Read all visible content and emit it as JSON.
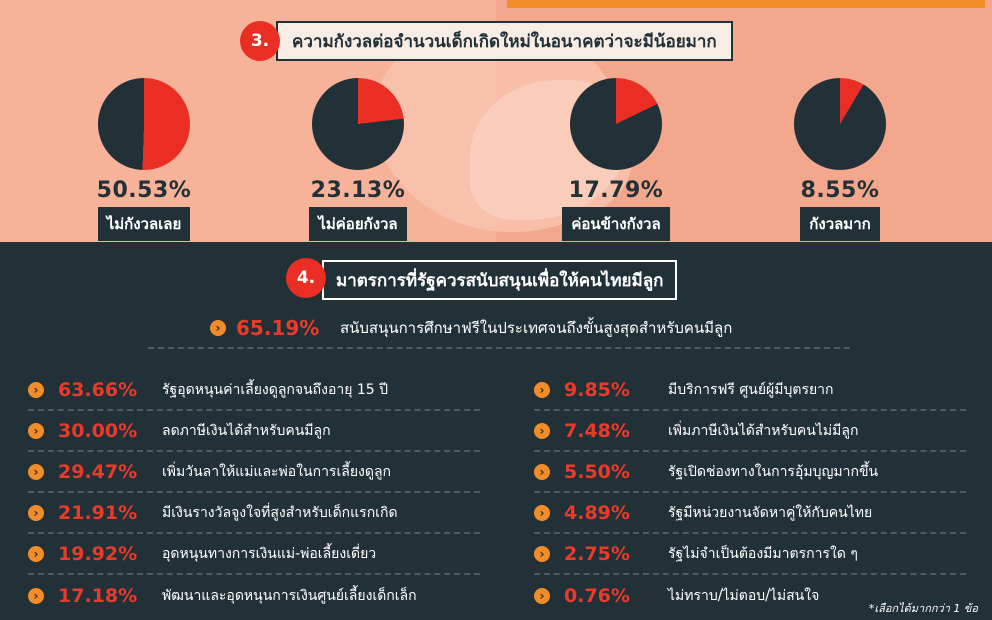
{
  "section3": {
    "number": "3.",
    "title": "ความกังวลต่อจำนวนเด็กเกิดใหม่ในอนาคตว่าจะมีน้อยมาก",
    "pies": [
      {
        "pct": "50.53%",
        "label": "ไม่กังวลเลย",
        "value": 50.53
      },
      {
        "pct": "23.13%",
        "label": "ไม่ค่อยกังวล",
        "value": 23.13
      },
      {
        "pct": "17.79%",
        "label": "ค่อนข้างกังวล",
        "value": 17.79
      },
      {
        "pct": "8.55%",
        "label": "กังวลมาก",
        "value": 8.55
      }
    ]
  },
  "section4": {
    "number": "4.",
    "title": "มาตรการที่รัฐควรสนับสนุนเพื่อให้คนไทยมีลูก",
    "featured": {
      "pct": "65.19%",
      "text": "สนับสนุนการศึกษาฟรีในประเทศจนถึงขั้นสูงสุดสำหรับคนมีลูก"
    },
    "left": [
      {
        "pct": "63.66%",
        "text": "รัฐอุดหนุนค่าเลี้ยงดูลูกจนถึงอายุ 15 ปี"
      },
      {
        "pct": "30.00%",
        "text": "ลดภาษีเงินได้สำหรับคนมีลูก"
      },
      {
        "pct": "29.47%",
        "text": "เพิ่มวันลาให้แม่และพ่อในการเลี้ยงดูลูก"
      },
      {
        "pct": "21.91%",
        "text": "มีเงินรางวัลจูงใจที่สูงสำหรับเด็กแรกเกิด"
      },
      {
        "pct": "19.92%",
        "text": "อุดหนุนทางการเงินแม่-พ่อเลี้ยงเดี่ยว"
      },
      {
        "pct": "17.18%",
        "text": "พัฒนาและอุดหนุนการเงินศูนย์เลี้ยงเด็กเล็ก"
      }
    ],
    "right": [
      {
        "pct": "9.85%",
        "text": "มีบริการฟรี ศูนย์ผู้มีบุตรยาก"
      },
      {
        "pct": "7.48%",
        "text": "เพิ่มภาษีเงินได้สำหรับคนไม่มีลูก"
      },
      {
        "pct": "5.50%",
        "text": "รัฐเปิดช่องทางในการอุ้มบุญมากขึ้น"
      },
      {
        "pct": "4.89%",
        "text": "รัฐมีหน่วยงานจัดหาคู่ให้กับคนไทย"
      },
      {
        "pct": "2.75%",
        "text": "รัฐไม่จำเป็นต้องมีมาตรการใด ๆ"
      },
      {
        "pct": "0.76%",
        "text": "ไม่ทราบ/ไม่ตอบ/ไม่สนใจ"
      }
    ],
    "footnote": "*เลือกได้มากกว่า 1 ข้อ"
  },
  "colors": {
    "accent": "#ea2e23",
    "dark": "#223038",
    "orange": "#f28c28",
    "peach": "#f6b39a"
  },
  "icons": {
    "bullet": "chevron-right-circle-icon"
  }
}
